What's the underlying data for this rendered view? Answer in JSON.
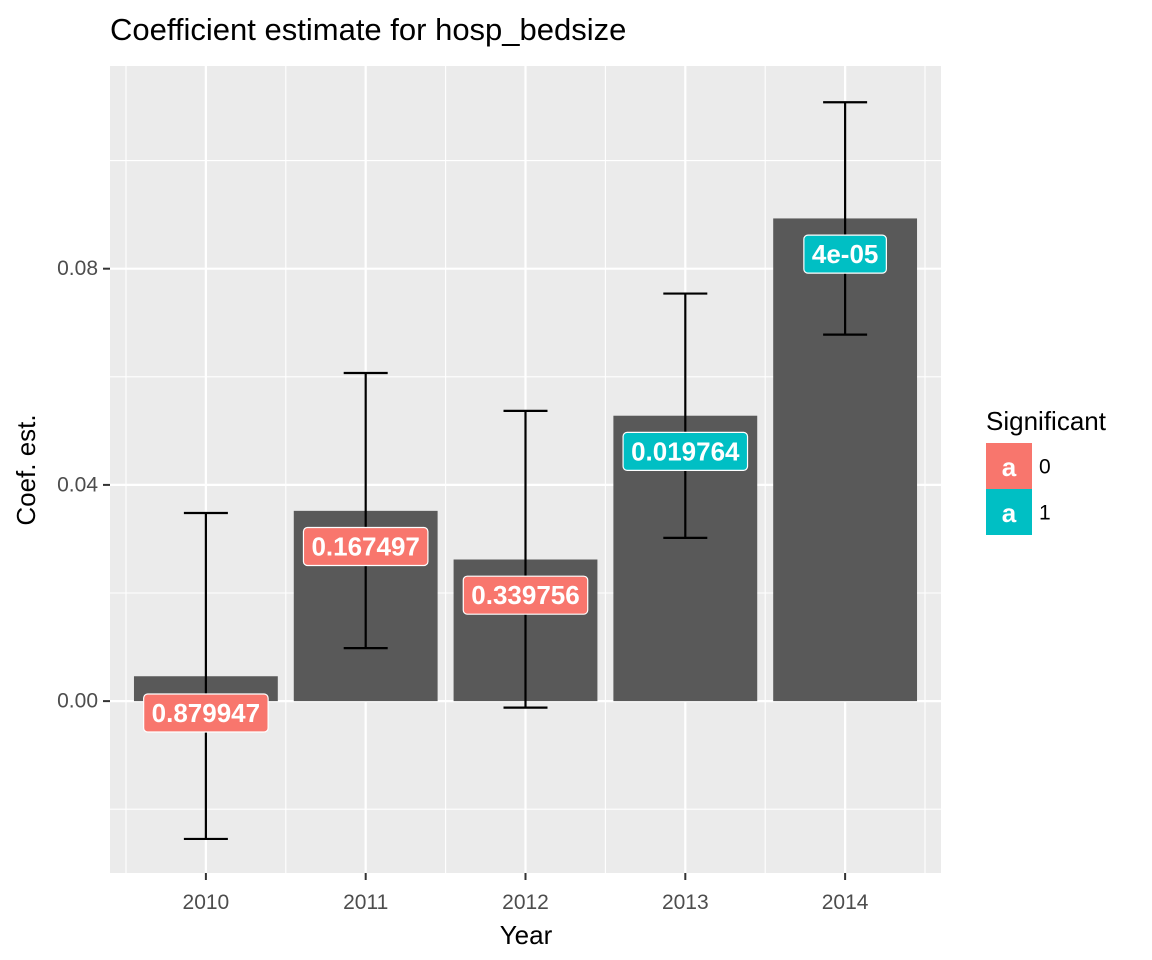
{
  "chart_data": {
    "type": "bar",
    "title": "Coefficient estimate for hosp_bedsize",
    "xlabel": "Year",
    "ylabel": "Coef. est.",
    "categories": [
      "2010",
      "2011",
      "2012",
      "2013",
      "2014"
    ],
    "values": [
      0.0046,
      0.0352,
      0.0262,
      0.0528,
      0.0893
    ],
    "error_low": [
      -0.0255,
      0.0098,
      -0.0012,
      0.0302,
      0.0678
    ],
    "error_high": [
      0.0348,
      0.0607,
      0.0537,
      0.0754,
      0.1108
    ],
    "labels": [
      "0.879947",
      "0.167497",
      "0.339756",
      "0.019764",
      "4e-05"
    ],
    "label_y": [
      -0.0022,
      0.0286,
      0.0196,
      0.0462,
      0.0827
    ],
    "significant": [
      "0",
      "0",
      "0",
      "1",
      "1"
    ],
    "ylim": [
      -0.0318,
      0.1175
    ],
    "yticks": [
      0.0,
      0.04,
      0.08
    ],
    "ytick_labels": [
      "0.00",
      "0.04",
      "0.08"
    ],
    "grid": true,
    "bar_color": "#595959",
    "panel_bg": "#EBEBEB",
    "errorbar_color": "#000000",
    "legend": {
      "title": "Significant",
      "position": "right",
      "key_glyph": "a",
      "items": [
        {
          "label": "0",
          "color": "#F8766D"
        },
        {
          "label": "1",
          "color": "#00BFC4"
        }
      ]
    }
  }
}
